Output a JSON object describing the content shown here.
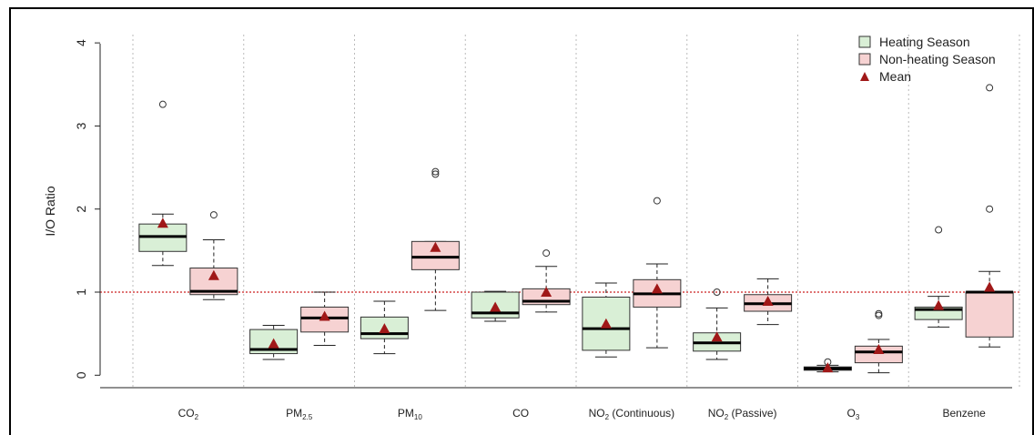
{
  "chart_data": {
    "type": "boxplot",
    "ylabel": "I/O Ratio",
    "ylim": [
      -0.15,
      4.1
    ],
    "yticks": [
      "0",
      "1",
      "2",
      "3",
      "4"
    ],
    "reference_line": 1,
    "legend": {
      "position": "top-right",
      "entries": [
        {
          "label": "Heating Season",
          "swatch": "box",
          "color": "#d9efd6"
        },
        {
          "label": "Non-heating Season",
          "swatch": "box",
          "color": "#f6d2d2"
        },
        {
          "label": "Mean",
          "swatch": "triangle",
          "color": "#a01818"
        }
      ]
    },
    "categories": [
      {
        "main": "CO",
        "sub": "2",
        "rest": ""
      },
      {
        "main": "PM",
        "sub": "2.5",
        "rest": ""
      },
      {
        "main": "PM",
        "sub": "10",
        "rest": ""
      },
      {
        "main": "CO",
        "sub": "",
        "rest": ""
      },
      {
        "main": "NO",
        "sub": "2",
        "rest": " (Continuous)"
      },
      {
        "main": "NO",
        "sub": "2",
        "rest": " (Passive)"
      },
      {
        "main": "O",
        "sub": "3",
        "rest": ""
      },
      {
        "main": "Benzene",
        "sub": "",
        "rest": ""
      }
    ],
    "series": [
      {
        "name": "Heating Season",
        "color": "#d9efd6",
        "boxes": [
          {
            "low": 1.32,
            "q1": 1.49,
            "median": 1.67,
            "q3": 1.82,
            "high": 1.94,
            "mean": 1.83,
            "outliers": [
              3.26
            ]
          },
          {
            "low": 0.19,
            "q1": 0.26,
            "median": 0.31,
            "q3": 0.55,
            "high": 0.6,
            "mean": 0.38,
            "outliers": []
          },
          {
            "low": 0.26,
            "q1": 0.44,
            "median": 0.5,
            "q3": 0.7,
            "high": 0.89,
            "mean": 0.56,
            "outliers": []
          },
          {
            "low": 0.65,
            "q1": 0.69,
            "median": 0.75,
            "q3": 1.0,
            "high": 1.01,
            "mean": 0.82,
            "outliers": []
          },
          {
            "low": 0.22,
            "q1": 0.3,
            "median": 0.56,
            "q3": 0.94,
            "high": 1.11,
            "mean": 0.62,
            "outliers": []
          },
          {
            "low": 0.19,
            "q1": 0.29,
            "median": 0.39,
            "q3": 0.51,
            "high": 0.81,
            "mean": 0.46,
            "outliers": [
              1.0
            ]
          },
          {
            "low": 0.04,
            "q1": 0.06,
            "median": 0.08,
            "q3": 0.1,
            "high": 0.12,
            "mean": 0.09,
            "outliers": [
              0.16
            ]
          },
          {
            "low": 0.58,
            "q1": 0.67,
            "median": 0.79,
            "q3": 0.82,
            "high": 0.95,
            "mean": 0.84,
            "outliers": [
              1.75
            ]
          }
        ]
      },
      {
        "name": "Non-heating Season",
        "color": "#f6d2d2",
        "boxes": [
          {
            "low": 0.91,
            "q1": 0.97,
            "median": 1.01,
            "q3": 1.29,
            "high": 1.63,
            "mean": 1.2,
            "outliers": [
              1.93
            ]
          },
          {
            "low": 0.36,
            "q1": 0.52,
            "median": 0.69,
            "q3": 0.82,
            "high": 1.0,
            "mean": 0.71,
            "outliers": []
          },
          {
            "low": 0.78,
            "q1": 1.27,
            "median": 1.42,
            "q3": 1.61,
            "high": 1.61,
            "mean": 1.54,
            "outliers": [
              2.42,
              2.45
            ]
          },
          {
            "low": 0.76,
            "q1": 0.85,
            "median": 0.89,
            "q3": 1.04,
            "high": 1.31,
            "mean": 1.0,
            "outliers": [
              1.47
            ]
          },
          {
            "low": 0.33,
            "q1": 0.82,
            "median": 0.98,
            "q3": 1.15,
            "high": 1.34,
            "mean": 1.04,
            "outliers": [
              2.1
            ]
          },
          {
            "low": 0.61,
            "q1": 0.77,
            "median": 0.86,
            "q3": 0.97,
            "high": 1.16,
            "mean": 0.89,
            "outliers": []
          },
          {
            "low": 0.03,
            "q1": 0.15,
            "median": 0.28,
            "q3": 0.35,
            "high": 0.43,
            "mean": 0.31,
            "outliers": [
              0.72,
              0.74
            ]
          },
          {
            "low": 0.34,
            "q1": 0.46,
            "median": 1.0,
            "q3": 1.0,
            "high": 1.25,
            "mean": 1.06,
            "outliers": [
              2.0,
              3.46
            ]
          }
        ]
      }
    ]
  },
  "styles": {
    "whisker_color": "#222222",
    "grid_color": "#bbbbbb",
    "ref_line_color": "#cc2222",
    "mean_color": "#a01818"
  }
}
